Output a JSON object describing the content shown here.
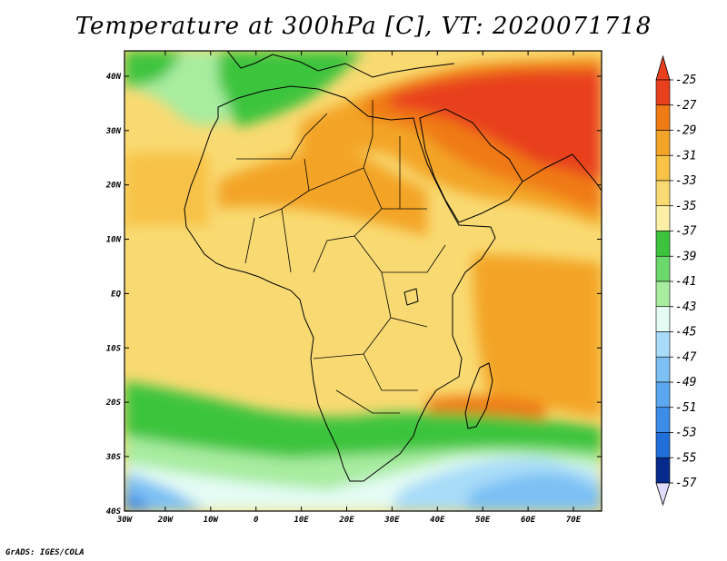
{
  "title": "Temperature at 300hPa [C], VT: 2020071718",
  "credit": "GrADS: IGES/COLA",
  "map": {
    "lat_labels": [
      "40N",
      "30N",
      "20N",
      "10N",
      "EQ",
      "10S",
      "20S",
      "30S",
      "40S"
    ],
    "lon_labels": [
      "30W",
      "20W",
      "10W",
      "0",
      "10E",
      "20E",
      "30E",
      "40E",
      "50E",
      "60E",
      "70E"
    ]
  },
  "colorbar": {
    "labels": [
      "-25",
      "-27",
      "-29",
      "-31",
      "-33",
      "-35",
      "-37",
      "-39",
      "-41",
      "-43",
      "-45",
      "-47",
      "-49",
      "-51",
      "-53",
      "-55",
      "-57"
    ],
    "colors": [
      "#e8401c",
      "#f07a14",
      "#f3a428",
      "#f7c246",
      "#f9da72",
      "#fbefa6",
      "#3cc43c",
      "#6cd96c",
      "#a8eca0",
      "#e4fcf4",
      "#a8dcf8",
      "#7cc0f4",
      "#5ca8f0",
      "#3c8ce8",
      "#206ed8",
      "#0c4cbc",
      "#062a8c"
    ],
    "top_arrow_color": "#e8401c",
    "bottom_arrow_color": "#e0dcfc"
  },
  "colors": {
    "land_outline": "#000000",
    "background_warm": "#f9da72"
  }
}
